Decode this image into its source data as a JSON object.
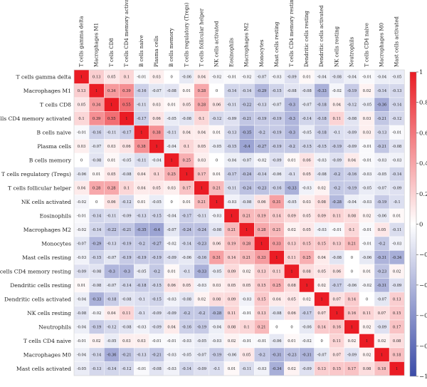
{
  "chart_data": {
    "type": "heatmap",
    "title": "",
    "labels": [
      "T cells gamma delta",
      "Macrophages M1",
      "T cells CD8",
      "T cells CD4 memory activated",
      "B cells naive",
      "Plasma cells",
      "B cells memory",
      "T cells regulatory (Tregs)",
      "T cells follicular helper",
      "NK cells activated",
      "Eosinophils",
      "Macrophages M2",
      "Monocytes",
      "Mast cells resting",
      "T cells CD4 memory resting",
      "Dendritic cells resting",
      "Dendritic cells activated",
      "NK cells resting",
      "Neutrophils",
      "T cells CD4 naive",
      "Macrophages M0",
      "Mast cells activated"
    ],
    "matrix": [
      [
        "1",
        "0.13",
        "0.05",
        "0.1",
        "-0.01",
        "0.03",
        "0",
        "-0.06",
        "0.04",
        "-0.02",
        "-0.01",
        "-0.02",
        "-0.07",
        "-0.03",
        "-0.09",
        "0.01",
        "-0.04",
        "-0.08",
        "-0.04",
        "-0.01",
        "-0.04",
        "-0.05"
      ],
      [
        "0.13",
        "1",
        "0.34",
        "0.39",
        "-0.16",
        "-0.07",
        "-0.08",
        "0.01",
        "0.28",
        "0",
        "-0.14",
        "-0.14",
        "-0.29",
        "-0.15",
        "-0.08",
        "-0.08",
        "-0.33",
        "-0.02",
        "-0.19",
        "0.02",
        "-0.14",
        "-0.13"
      ],
      [
        "0.05",
        "0.34",
        "1",
        "0.55",
        "-0.11",
        "0.03",
        "0.01",
        "0.05",
        "0.28",
        "0.06",
        "-0.11",
        "-0.22",
        "-0.13",
        "-0.07",
        "-0.3",
        "-0.07",
        "-0.18",
        "0.04",
        "-0.12",
        "-0.05",
        "-0.36",
        "-0.14"
      ],
      [
        "0.1",
        "0.39",
        "0.55",
        "1",
        "-0.17",
        "0.06",
        "-0.05",
        "-0.08",
        "0.1",
        "-0.12",
        "-0.09",
        "-0.21",
        "-0.19",
        "-0.19",
        "-0.3",
        "-0.14",
        "-0.18",
        "0.11",
        "-0.08",
        "0.03",
        "-0.21",
        "-0.12"
      ],
      [
        "-0.01",
        "-0.16",
        "-0.11",
        "-0.17",
        "1",
        "0.38",
        "-0.11",
        "0.04",
        "0.04",
        "0.01",
        "-0.13",
        "-0.35",
        "-0.2",
        "-0.19",
        "-0.3",
        "-0.05",
        "-0.18",
        "-0.1",
        "-0.09",
        "0.03",
        "-0.13",
        "-0.01"
      ],
      [
        "0.03",
        "-0.07",
        "0.03",
        "0.06",
        "0.38",
        "1",
        "-0.04",
        "0.1",
        "0.05",
        "-0.05",
        "-0.15",
        "-0.4",
        "-0.27",
        "-0.19",
        "-0.2",
        "-0.15",
        "-0.15",
        "-0.19",
        "-0.09",
        "-0.01",
        "-0.21",
        "-0.08"
      ],
      [
        "0",
        "-0.08",
        "0.01",
        "-0.05",
        "-0.11",
        "-0.04",
        "1",
        "0.25",
        "0.03",
        "0",
        "-0.04",
        "-0.07",
        "-0.02",
        "-0.09",
        "0.01",
        "0.06",
        "-0.03",
        "-0.09",
        "0.04",
        "-0.01",
        "-0.03",
        "-0.03"
      ],
      [
        "-0.06",
        "0.01",
        "0.05",
        "-0.08",
        "0.04",
        "0.1",
        "0.25",
        "1",
        "0.17",
        "0.01",
        "-0.17",
        "-0.24",
        "-0.14",
        "-0.06",
        "-0.1",
        "0.05",
        "-0.08",
        "-0.2",
        "-0.16",
        "-0.03",
        "-0.05",
        "-0.14"
      ],
      [
        "0.04",
        "0.28",
        "0.28",
        "0.1",
        "0.04",
        "0.05",
        "0.03",
        "0.17",
        "1",
        "0.21",
        "-0.11",
        "-0.24",
        "-0.23",
        "-0.16",
        "-0.33",
        "-0.03",
        "0.02",
        "-0.2",
        "-0.19",
        "-0.05",
        "-0.07",
        "-0.09"
      ],
      [
        "-0.02",
        "0",
        "0.06",
        "-0.12",
        "0.01",
        "-0.05",
        "0",
        "0.01",
        "0.21",
        "1",
        "-0.03",
        "-0.08",
        "0.06",
        "0.31",
        "-0.05",
        "0.03",
        "0.08",
        "-0.28",
        "-0.04",
        "-0.03",
        "-0.19",
        "-0.1"
      ],
      [
        "-0.01",
        "-0.14",
        "-0.11",
        "-0.09",
        "-0.13",
        "-0.15",
        "-0.04",
        "-0.17",
        "-0.11",
        "-0.03",
        "1",
        "0.21",
        "0.19",
        "0.14",
        "0.09",
        "0.05",
        "0.09",
        "0.11",
        "0.08",
        "0.02",
        "-0.06",
        "0.01"
      ],
      [
        "-0.02",
        "-0.14",
        "-0.22",
        "-0.21",
        "-0.35",
        "-0.4",
        "-0.07",
        "-0.24",
        "-0.24",
        "-0.08",
        "0.21",
        "1",
        "0.28",
        "0.21",
        "0.02",
        "0.05",
        "-0.03",
        "-0.01",
        "0.1",
        "-0.01",
        "0.05",
        "-0.11"
      ],
      [
        "-0.07",
        "-0.29",
        "-0.13",
        "-0.19",
        "-0.2",
        "-0.27",
        "-0.02",
        "-0.14",
        "-0.23",
        "0.06",
        "0.19",
        "0.28",
        "1",
        "0.33",
        "0.13",
        "0.15",
        "0.15",
        "0.13",
        "0.21",
        "-0.01",
        "-0.2",
        "-0.03"
      ],
      [
        "-0.03",
        "-0.15",
        "-0.07",
        "-0.19",
        "-0.19",
        "-0.19",
        "-0.09",
        "-0.06",
        "-0.16",
        "0.31",
        "0.14",
        "0.21",
        "0.33",
        "1",
        "0.11",
        "0.25",
        "0.04",
        "-0.08",
        "0",
        "-0.06",
        "-0.31",
        "-0.34"
      ],
      [
        "-0.09",
        "-0.08",
        "-0.3",
        "-0.3",
        "-0.05",
        "-0.2",
        "0.01",
        "-0.1",
        "-0.33",
        "-0.05",
        "0.09",
        "0.02",
        "0.13",
        "0.11",
        "1",
        "0.08",
        "0.05",
        "0.06",
        "0",
        "0.01",
        "-0.23",
        "0.02"
      ],
      [
        "0.01",
        "-0.08",
        "-0.07",
        "-0.14",
        "-0.18",
        "-0.15",
        "0.06",
        "0.05",
        "-0.03",
        "0.03",
        "0.05",
        "0.05",
        "0.15",
        "0.25",
        "0.08",
        "1",
        "0.02",
        "-0.17",
        "-0.06",
        "-0.02",
        "-0.31",
        "-0.09"
      ],
      [
        "-0.04",
        "-0.33",
        "-0.18",
        "-0.08",
        "-0.1",
        "-0.15",
        "-0.03",
        "-0.08",
        "0.02",
        "0.08",
        "0.09",
        "-0.03",
        "0.15",
        "0.04",
        "0.05",
        "0.02",
        "1",
        "0.07",
        "0.14",
        "0",
        "-0.07",
        "0.13"
      ],
      [
        "-0.08",
        "-0.02",
        "0.04",
        "0.11",
        "-0.1",
        "-0.09",
        "-0.09",
        "-0.2",
        "-0.2",
        "-0.28",
        "0.11",
        "-0.01",
        "0.13",
        "-0.08",
        "0.06",
        "-0.17",
        "0.07",
        "1",
        "0.16",
        "0.11",
        "0.07",
        "0.15"
      ],
      [
        "-0.04",
        "-0.19",
        "-0.12",
        "-0.08",
        "-0.03",
        "-0.09",
        "0.04",
        "-0.16",
        "-0.19",
        "-0.04",
        "0.08",
        "0.1",
        "0.21",
        "0",
        "0",
        "-0.06",
        "0.14",
        "0.16",
        "1",
        "0.02",
        "-0.09",
        "0.17"
      ],
      [
        "-0.01",
        "0.02",
        "-0.05",
        "0.03",
        "0.03",
        "-0.01",
        "-0.01",
        "-0.03",
        "-0.05",
        "-0.03",
        "0.02",
        "-0.01",
        "-0.01",
        "-0.06",
        "0.01",
        "-0.02",
        "0",
        "0.11",
        "0.02",
        "1",
        "0.02",
        "0.08"
      ],
      [
        "-0.04",
        "-0.14",
        "-0.36",
        "-0.21",
        "-0.13",
        "-0.21",
        "-0.03",
        "-0.05",
        "-0.07",
        "-0.19",
        "-0.06",
        "0.05",
        "-0.2",
        "-0.31",
        "-0.23",
        "-0.31",
        "-0.07",
        "0.07",
        "-0.09",
        "0.02",
        "1",
        "0.18"
      ],
      [
        "-0.05",
        "-0.13",
        "-0.14",
        "-0.12",
        "-0.01",
        "-0.08",
        "-0.03",
        "-0.14",
        "-0.09",
        "-0.1",
        "0.01",
        "-0.11",
        "-0.03",
        "-0.34",
        "0.02",
        "-0.09",
        "0.13",
        "0.15",
        "0.17",
        "0.08",
        "0.18",
        "1"
      ]
    ],
    "color_scale": {
      "min": -1,
      "max": 1,
      "negative_color": "#3b4ba8",
      "mid_color": "#ffffff",
      "positive_color": "#ea1c24",
      "ticks": [
        "1",
        "0.8",
        "0.6",
        "0.4",
        "0.2",
        "0",
        "−0.2",
        "−0.4",
        "−0.6",
        "−0.8",
        "−1"
      ]
    }
  }
}
